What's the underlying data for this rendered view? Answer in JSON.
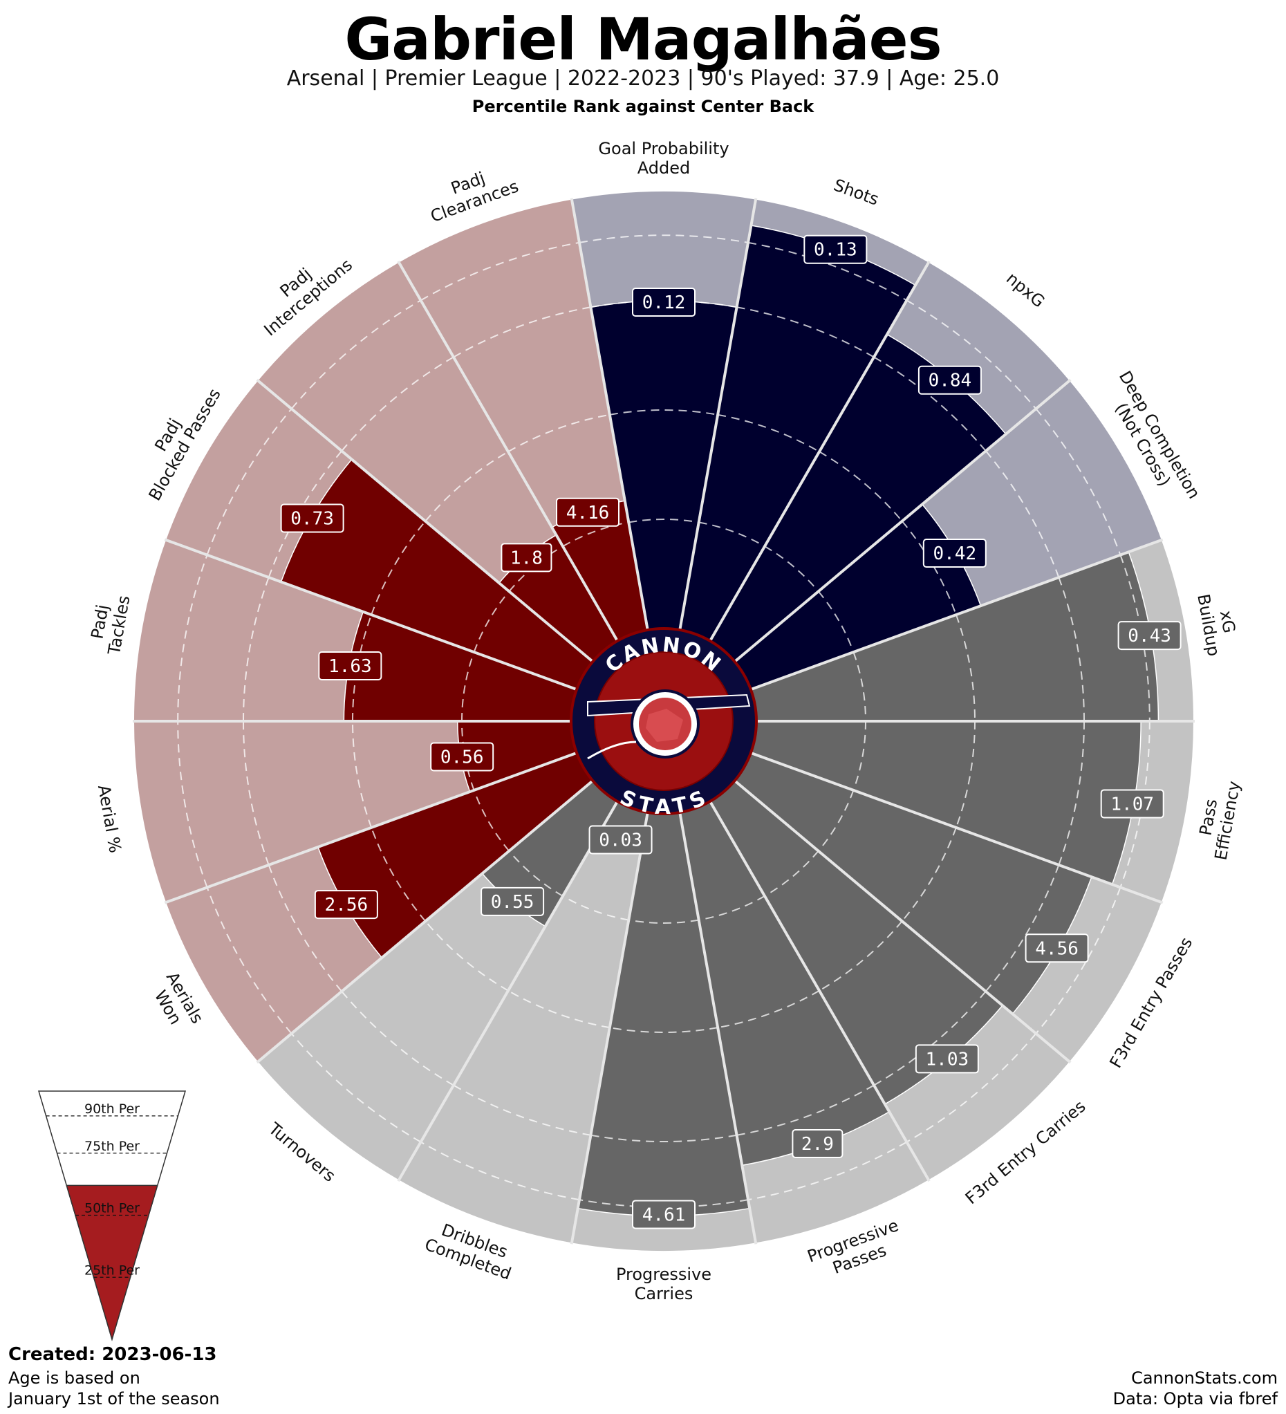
{
  "header": {
    "title": "Gabriel Magalhães",
    "subtitle": "Arsenal  | Premier League | 2022-2023 | 90's Played: 37.9 | Age: 25.0",
    "comparison": "Percentile Rank against Center Back"
  },
  "logo": {
    "top_text": "CANNON",
    "bottom_text": "STATS",
    "icon": "cannon-icon"
  },
  "legend": {
    "labels": [
      "90th Per",
      "75th Per",
      "50th Per",
      "25th Per"
    ],
    "fill_percentile": 62,
    "fill_color": "#a51c1f"
  },
  "footer": {
    "created": "Created: 2023-06-13",
    "age_note_line1": "Age is based on",
    "age_note_line2": "January 1st of the season",
    "site": "CannonStats.com",
    "source": "Data: Opta via fbref"
  },
  "colors": {
    "attack": "#00002e",
    "attack_bg": "#a3a3b3",
    "possession": "#666666",
    "possession_bg": "#c3c3c3",
    "defense": "#700000",
    "defense_bg": "#c3a09f"
  },
  "chart_data": {
    "type": "polar-bar",
    "title": "Gabriel Magalhães",
    "rlim": [
      0,
      100
    ],
    "grid_percentiles": [
      25,
      50,
      75,
      90
    ],
    "categories": [
      {
        "label": [
          "Goal Probability",
          "Added"
        ],
        "value": "0.12",
        "percentile": 75,
        "group": "attack"
      },
      {
        "label": [
          "Shots"
        ],
        "value": "0.13",
        "percentile": 94,
        "group": "attack"
      },
      {
        "label": [
          "npxG"
        ],
        "value": "0.84",
        "percentile": 81,
        "group": "attack"
      },
      {
        "label": [
          "Deep Completion",
          "(Not Cross)"
        ],
        "value": "0.42",
        "percentile": 56,
        "group": "attack"
      },
      {
        "label": [
          "xG",
          "Buildup"
        ],
        "value": "0.43",
        "percentile": 92,
        "group": "possession"
      },
      {
        "label": [
          "Pass",
          "Efficiency"
        ],
        "value": "1.07",
        "percentile": 88,
        "group": "possession"
      },
      {
        "label": [
          "F3rd Entry Passes"
        ],
        "value": "4.56",
        "percentile": 83,
        "group": "possession"
      },
      {
        "label": [
          "F3rd Entry Carries"
        ],
        "value": "1.03",
        "percentile": 80,
        "group": "possession"
      },
      {
        "label": [
          "Progressive",
          "Passes"
        ],
        "value": "2.9",
        "percentile": 82,
        "group": "possession"
      },
      {
        "label": [
          "Progressive",
          "Carries"
        ],
        "value": "4.61",
        "percentile": 92,
        "group": "possession"
      },
      {
        "label": [
          "Dribbles",
          "Completed"
        ],
        "value": "0.03",
        "percentile": 8,
        "group": "possession"
      },
      {
        "label": [
          "Turnovers"
        ],
        "value": "0.55",
        "percentile": 33,
        "group": "possession"
      },
      {
        "label": [
          "Aerials",
          "Won"
        ],
        "value": "2.56",
        "percentile": 63,
        "group": "defense"
      },
      {
        "label": [
          "Aerial %"
        ],
        "value": "0.56",
        "percentile": 26,
        "group": "defense"
      },
      {
        "label": [
          "Padj",
          "Tackles"
        ],
        "value": "1.63",
        "percentile": 52,
        "group": "defense"
      },
      {
        "label": [
          "Padj",
          "Blocked Passes"
        ],
        "value": "0.73",
        "percentile": 72,
        "group": "defense"
      },
      {
        "label": [
          "Padj",
          "Interceptions"
        ],
        "value": "1.8",
        "percentile": 28,
        "group": "defense"
      },
      {
        "label": [
          "Padj",
          "Clearances"
        ],
        "value": "4.16",
        "percentile": 30,
        "group": "defense"
      }
    ]
  }
}
